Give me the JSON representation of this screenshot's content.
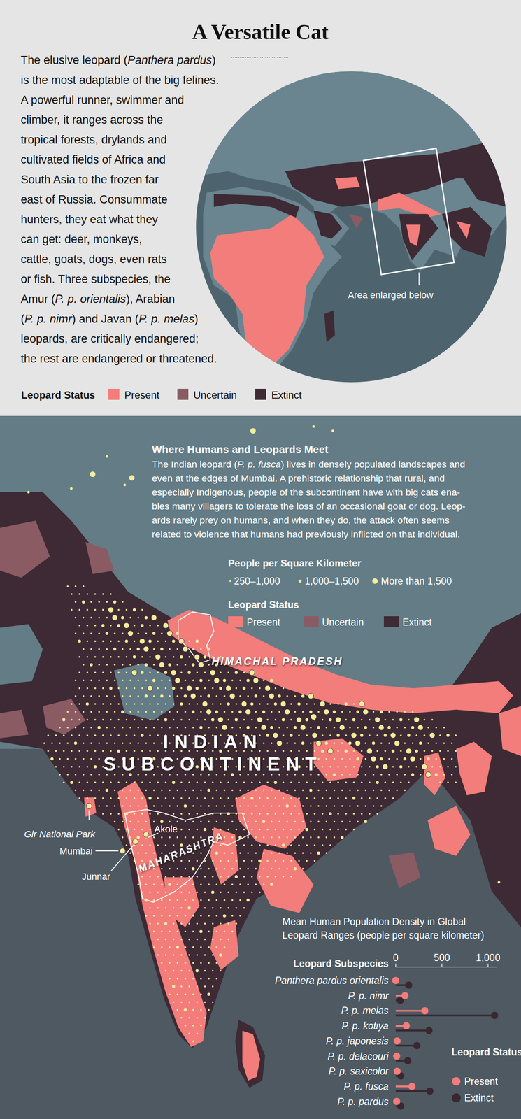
{
  "header": {
    "title": "A Versatile Cat"
  },
  "intro": {
    "lines": [
      "The elusive leopard (Panthera pardus)",
      "is the most adaptable of the big felines.",
      "A powerful runner, swimmer and",
      "climber, it ranges across the",
      "tropical forests, drylands and",
      "cultivated fields of Africa and",
      "South Asia to the frozen far",
      "east of Russia. Consummate",
      "hunters, they eat what they",
      "can get: deer, monkeys,",
      "cattle, goats, dogs, even rats",
      "or fish. Three subspecies, the",
      "Amur (P. p. orientalis), Arabian",
      "(P. p. nimr) and Javan (P. p. melas)",
      "leopards, are critically endangered;",
      "the rest are endangered or threatened."
    ]
  },
  "globe": {
    "callout": "Area enlarged below"
  },
  "status_legend": {
    "title": "Leopard Status",
    "items": [
      {
        "label": "Present",
        "color": "#f27d7b"
      },
      {
        "label": "Uncertain",
        "color": "#8b5b64"
      },
      {
        "label": "Extinct",
        "color": "#3d2a34"
      }
    ]
  },
  "map": {
    "title": "Where Humans and Leopards Meet",
    "lines": [
      "The Indian leopard (P. p. fusca) lives in densely populated landscapes and",
      "even at the edges of Mumbai. A prehistoric relationship that rural, and",
      "especially Indigenous, people of the subcontinent have with big cats ena-",
      "bles many villagers to tolerate the loss of an occasional goat or dog. Leop-",
      "ards rarely prey on humans, and when they do, the attack often seems",
      "related to violence that humans had previously inflicted on that individual."
    ],
    "density_legend": {
      "title": "People per Square Kilometer",
      "items": [
        "250–1,000",
        "1,000–1,500",
        "More than 1,500"
      ]
    },
    "status_legend_title": "Leopard Status",
    "labels": {
      "region": "HIMACHAL PRADESH",
      "subcontinent": [
        "INDIAN",
        "SUBCONTINENT"
      ],
      "state": "MAHARASHTRA",
      "places": [
        "Gir National Park",
        "Mumbai",
        "Akole",
        "Junnar"
      ]
    }
  },
  "chart_data": {
    "type": "lollipop",
    "title": "Mean Human Population Density in Global Leopard Ranges (people per square kilometer)",
    "y_label": "Leopard Subspecies",
    "legend_title": "Leopard Status",
    "orientation": "horizontal",
    "legend": "bottom-right",
    "categories": [
      "Panthera pardus orientalis",
      "P. p. nimr",
      "P. p. melas",
      "P. p. kotiya",
      "P. p. japonesis",
      "P. p. delacouri",
      "P. p. saxicolor",
      "P. p. fusca",
      "P. p. pardus"
    ],
    "series": [
      {
        "name": "Present",
        "color": "#f27d7b",
        "values": [
          0,
          100,
          315,
          115,
          15,
          10,
          15,
          175,
          10
        ]
      },
      {
        "name": "Extinct",
        "color": "#3a2730",
        "values": [
          140,
          50,
          1070,
          360,
          230,
          130,
          55,
          370,
          55
        ]
      }
    ],
    "xlim": [
      0,
      1100
    ],
    "xticks": [
      0,
      500,
      {
        "value": 1000,
        "label": "1,000"
      }
    ]
  }
}
